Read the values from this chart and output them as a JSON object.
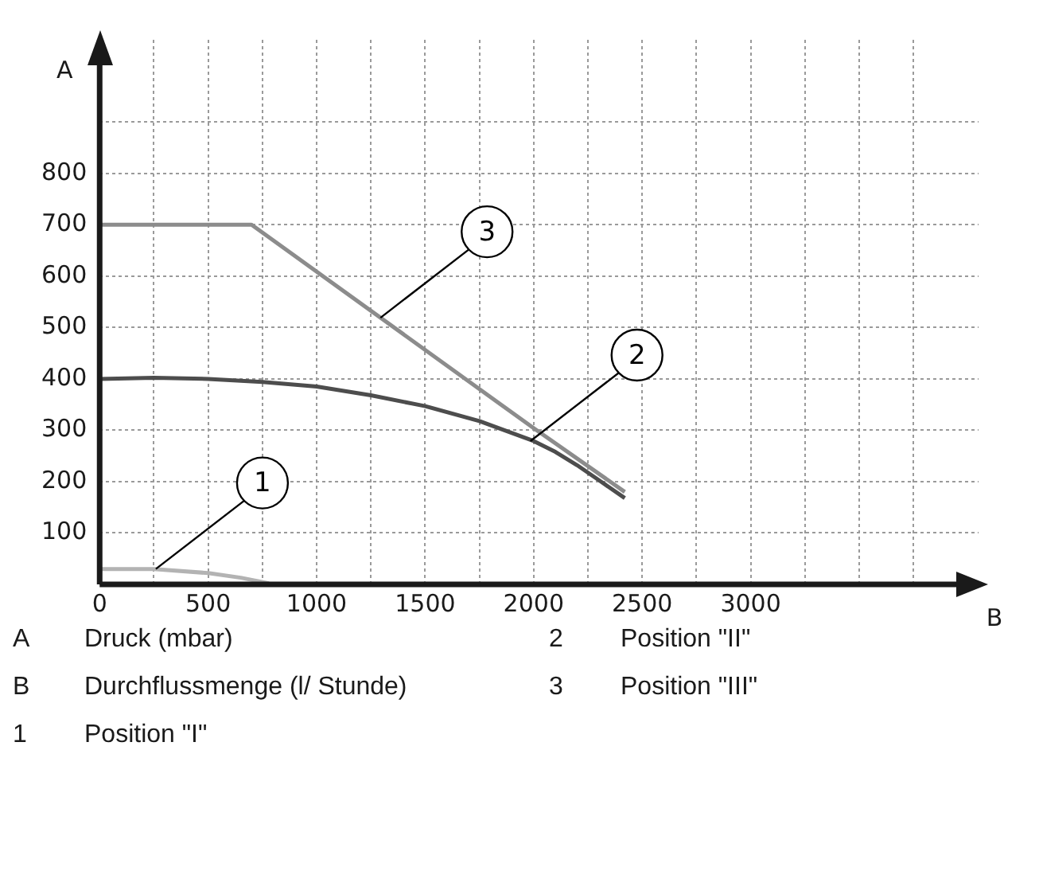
{
  "chart_data": {
    "type": "line",
    "xlabel": "B",
    "ylabel": "A",
    "xlim": [
      0,
      4050
    ],
    "ylim": [
      0,
      1060
    ],
    "xticks": [
      0,
      {
        "value": 250,
        "label": null
      },
      500,
      {
        "value": 750,
        "label": null
      },
      1000,
      {
        "value": 1250,
        "label": null
      },
      1500,
      {
        "value": 1750,
        "label": null
      },
      2000,
      {
        "value": 2250,
        "label": null
      },
      2500,
      {
        "value": 2750,
        "label": null
      },
      3000,
      {
        "value": 3250,
        "label": null
      },
      {
        "value": 3500,
        "label": null
      },
      {
        "value": 3750,
        "label": null
      }
    ],
    "yticks": [
      {
        "value": 0,
        "label": null
      },
      100,
      200,
      300,
      400,
      500,
      600,
      700,
      800,
      {
        "value": 900,
        "label": null
      }
    ],
    "grid": true,
    "legend": false,
    "marker": "none",
    "line_style": "solid",
    "series": [
      {
        "color": "#b3b3b3",
        "x": [
          0,
          250,
          500,
          650,
          780
        ],
        "values": [
          30,
          30,
          22,
          13,
          2
        ]
      },
      {
        "color": "#4d4d4d",
        "x": [
          0,
          250,
          500,
          750,
          1000,
          1250,
          1500,
          1750,
          2000,
          2100,
          2200,
          2300,
          2420
        ],
        "values": [
          400,
          402,
          400,
          394,
          385,
          368,
          347,
          318,
          279,
          258,
          232,
          203,
          168
        ]
      },
      {
        "color": "#8c8c8c",
        "x": [
          0,
          700,
          2000,
          2420
        ],
        "values": [
          700,
          700,
          304,
          180
        ]
      }
    ],
    "annotations": [
      {
        "text": "1",
        "x": 259,
        "y": 30
      },
      {
        "text": "2",
        "x": 1985,
        "y": 279
      },
      {
        "text": "3",
        "x": 1294,
        "y": 519
      },
      "A Druck (mbar)",
      "2 Position \"II\"",
      "B Durchflussmenge (l/ Stunde)",
      "3 Position \"III\"",
      "1 Position \"I\""
    ]
  }
}
